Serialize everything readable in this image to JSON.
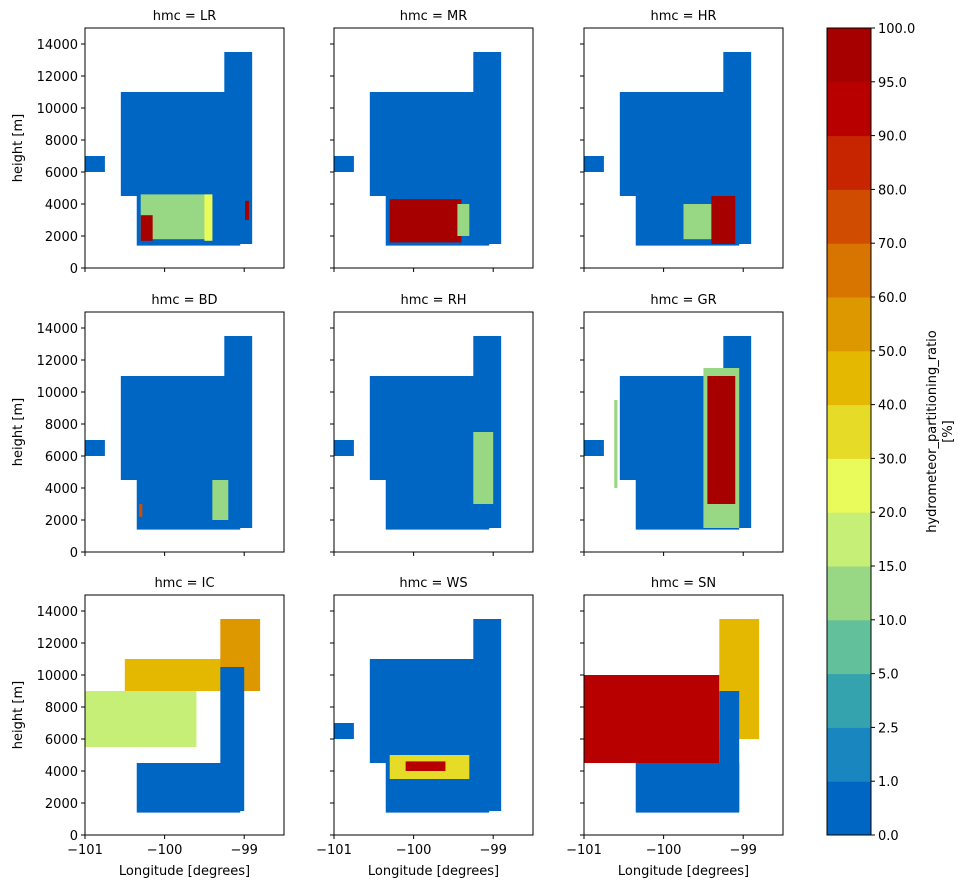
{
  "chart_data": {
    "type": "heatmap",
    "facet_variable": "hmc",
    "panels": [
      {
        "title": "hmc = LR",
        "hmc": "LR",
        "row": 0,
        "col": 0,
        "regions": [
          {
            "lon": [
              -101.0,
              -100.75
            ],
            "h": [
              6000,
              7000
            ],
            "value": 0
          },
          {
            "lon": [
              -100.55,
              -99.05
            ],
            "h": [
              4500,
              11000
            ],
            "value": 0
          },
          {
            "lon": [
              -99.25,
              -98.9
            ],
            "h": [
              1500,
              13500
            ],
            "value": 0
          },
          {
            "lon": [
              -100.35,
              -99.05
            ],
            "h": [
              1400,
              4500
            ],
            "value": 0
          },
          {
            "lon": [
              -100.3,
              -99.4
            ],
            "h": [
              1800,
              4600
            ],
            "value": 12
          },
          {
            "lon": [
              -100.3,
              -100.15
            ],
            "h": [
              1700,
              3300
            ],
            "value": 97
          },
          {
            "lon": [
              -99.5,
              -99.4
            ],
            "h": [
              1700,
              4600
            ],
            "value": 25
          },
          {
            "lon": [
              -98.99,
              -98.94
            ],
            "h": [
              3000,
              4200
            ],
            "value": 97
          }
        ]
      },
      {
        "title": "hmc = MR",
        "hmc": "MR",
        "row": 0,
        "col": 1,
        "regions": [
          {
            "lon": [
              -101.0,
              -100.75
            ],
            "h": [
              6000,
              7000
            ],
            "value": 0
          },
          {
            "lon": [
              -100.55,
              -99.05
            ],
            "h": [
              4500,
              11000
            ],
            "value": 0
          },
          {
            "lon": [
              -99.25,
              -98.9
            ],
            "h": [
              1500,
              13500
            ],
            "value": 0
          },
          {
            "lon": [
              -100.35,
              -99.05
            ],
            "h": [
              1400,
              4500
            ],
            "value": 0
          },
          {
            "lon": [
              -100.3,
              -99.4
            ],
            "h": [
              1600,
              4300
            ],
            "value": 97
          },
          {
            "lon": [
              -99.45,
              -99.3
            ],
            "h": [
              2000,
              4000
            ],
            "value": 12
          }
        ]
      },
      {
        "title": "hmc = HR",
        "hmc": "HR",
        "row": 0,
        "col": 2,
        "regions": [
          {
            "lon": [
              -101.0,
              -100.75
            ],
            "h": [
              6000,
              7000
            ],
            "value": 0
          },
          {
            "lon": [
              -100.55,
              -99.05
            ],
            "h": [
              4500,
              11000
            ],
            "value": 0
          },
          {
            "lon": [
              -99.25,
              -98.9
            ],
            "h": [
              1500,
              13500
            ],
            "value": 0
          },
          {
            "lon": [
              -100.35,
              -99.05
            ],
            "h": [
              1400,
              4500
            ],
            "value": 0
          },
          {
            "lon": [
              -99.75,
              -99.35
            ],
            "h": [
              1800,
              4000
            ],
            "value": 12
          },
          {
            "lon": [
              -99.4,
              -99.1
            ],
            "h": [
              1500,
              4500
            ],
            "value": 97
          }
        ]
      },
      {
        "title": "hmc = BD",
        "hmc": "BD",
        "row": 1,
        "col": 0,
        "regions": [
          {
            "lon": [
              -101.0,
              -100.75
            ],
            "h": [
              6000,
              7000
            ],
            "value": 0
          },
          {
            "lon": [
              -100.55,
              -99.05
            ],
            "h": [
              4500,
              11000
            ],
            "value": 0
          },
          {
            "lon": [
              -99.25,
              -98.9
            ],
            "h": [
              1500,
              13500
            ],
            "value": 0
          },
          {
            "lon": [
              -100.35,
              -99.05
            ],
            "h": [
              1400,
              4500
            ],
            "value": 0
          },
          {
            "lon": [
              -99.4,
              -99.2
            ],
            "h": [
              2000,
              4500
            ],
            "value": 12
          },
          {
            "lon": [
              -100.32,
              -100.28
            ],
            "h": [
              2200,
              3000
            ],
            "value": 75
          }
        ]
      },
      {
        "title": "hmc = RH",
        "hmc": "RH",
        "row": 1,
        "col": 1,
        "regions": [
          {
            "lon": [
              -101.0,
              -100.75
            ],
            "h": [
              6000,
              7000
            ],
            "value": 0
          },
          {
            "lon": [
              -100.55,
              -99.05
            ],
            "h": [
              4500,
              11000
            ],
            "value": 0
          },
          {
            "lon": [
              -99.25,
              -98.9
            ],
            "h": [
              1500,
              13500
            ],
            "value": 0
          },
          {
            "lon": [
              -100.35,
              -99.05
            ],
            "h": [
              1400,
              4500
            ],
            "value": 0
          },
          {
            "lon": [
              -99.25,
              -99.0
            ],
            "h": [
              3000,
              7500
            ],
            "value": 12
          }
        ]
      },
      {
        "title": "hmc = GR",
        "hmc": "GR",
        "row": 1,
        "col": 2,
        "regions": [
          {
            "lon": [
              -101.0,
              -100.75
            ],
            "h": [
              6000,
              7000
            ],
            "value": 0
          },
          {
            "lon": [
              -100.55,
              -99.05
            ],
            "h": [
              4500,
              11000
            ],
            "value": 0
          },
          {
            "lon": [
              -99.25,
              -98.9
            ],
            "h": [
              1500,
              13500
            ],
            "value": 0
          },
          {
            "lon": [
              -100.35,
              -99.05
            ],
            "h": [
              1400,
              4500
            ],
            "value": 0
          },
          {
            "lon": [
              -99.5,
              -99.05
            ],
            "h": [
              1500,
              11500
            ],
            "value": 12
          },
          {
            "lon": [
              -99.45,
              -99.1
            ],
            "h": [
              3000,
              11000
            ],
            "value": 97
          },
          {
            "lon": [
              -100.62,
              -100.58
            ],
            "h": [
              4000,
              9500
            ],
            "value": 12
          }
        ]
      },
      {
        "title": "hmc = IC",
        "hmc": "IC",
        "row": 2,
        "col": 0,
        "regions": [
          {
            "lon": [
              -100.35,
              -99.05
            ],
            "h": [
              1400,
              4500
            ],
            "value": 0
          },
          {
            "lon": [
              -101.0,
              -99.6
            ],
            "h": [
              5500,
              9000
            ],
            "value": 18
          },
          {
            "lon": [
              -100.5,
              -99.2
            ],
            "h": [
              9000,
              11000
            ],
            "value": 48
          },
          {
            "lon": [
              -99.3,
              -98.8
            ],
            "h": [
              9000,
              13500
            ],
            "value": 55
          },
          {
            "lon": [
              -99.3,
              -99.0
            ],
            "h": [
              1500,
              10500
            ],
            "value": 0
          }
        ]
      },
      {
        "title": "hmc = WS",
        "hmc": "WS",
        "row": 2,
        "col": 1,
        "regions": [
          {
            "lon": [
              -101.0,
              -100.75
            ],
            "h": [
              6000,
              7000
            ],
            "value": 0
          },
          {
            "lon": [
              -100.55,
              -99.05
            ],
            "h": [
              4500,
              11000
            ],
            "value": 0
          },
          {
            "lon": [
              -99.25,
              -98.9
            ],
            "h": [
              1500,
              13500
            ],
            "value": 0
          },
          {
            "lon": [
              -100.35,
              -99.05
            ],
            "h": [
              1400,
              4500
            ],
            "value": 0
          },
          {
            "lon": [
              -100.3,
              -99.3
            ],
            "h": [
              3500,
              5000
            ],
            "value": 35
          },
          {
            "lon": [
              -100.1,
              -99.6
            ],
            "h": [
              4000,
              4600
            ],
            "value": 92
          }
        ]
      },
      {
        "title": "hmc = SN",
        "hmc": "SN",
        "row": 2,
        "col": 2,
        "regions": [
          {
            "lon": [
              -100.35,
              -99.05
            ],
            "h": [
              1400,
              4500
            ],
            "value": 0
          },
          {
            "lon": [
              -101.0,
              -99.3
            ],
            "h": [
              4500,
              10000
            ],
            "value": 92
          },
          {
            "lon": [
              -99.3,
              -98.8
            ],
            "h": [
              6000,
              13500
            ],
            "value": 40
          },
          {
            "lon": [
              -99.3,
              -99.05
            ],
            "h": [
              1500,
              9000
            ],
            "value": 0
          }
        ]
      }
    ],
    "x_ticks": [
      -101,
      -100,
      -99
    ],
    "x_tick_labels": [
      "−101",
      "−100",
      "−99"
    ],
    "y_ticks": [
      0,
      2000,
      4000,
      6000,
      8000,
      10000,
      12000,
      14000
    ],
    "y_tick_labels": [
      "0",
      "2000",
      "4000",
      "6000",
      "8000",
      "10000",
      "12000",
      "14000"
    ],
    "xlim": [
      -101.0,
      -98.5
    ],
    "ylim": [
      0,
      15000
    ],
    "xlabel": "Longitude [degrees]",
    "ylabel": "height [m]",
    "colorbar": {
      "label_line1": "hydrometeor_partitioning_ratio",
      "label_line2": "[%]",
      "boundaries": [
        0,
        1,
        2.5,
        5,
        10,
        15,
        20,
        30,
        40,
        50,
        60,
        70,
        80,
        90,
        95,
        100
      ],
      "tick_labels": [
        "0.0",
        "1.0",
        "2.5",
        "5.0",
        "10.0",
        "15.0",
        "20.0",
        "30.0",
        "40.0",
        "50.0",
        "60.0",
        "70.0",
        "80.0",
        "90.0",
        "95.0",
        "100.0"
      ],
      "colors": [
        "#0066c4",
        "#1a86bf",
        "#34a3ae",
        "#62c09a",
        "#98d884",
        "#c6ef78",
        "#e8fb5a",
        "#e6dc28",
        "#e4b800",
        "#dd9800",
        "#d87500",
        "#d04c00",
        "#c72400",
        "#b90000",
        "#a60000"
      ]
    }
  }
}
